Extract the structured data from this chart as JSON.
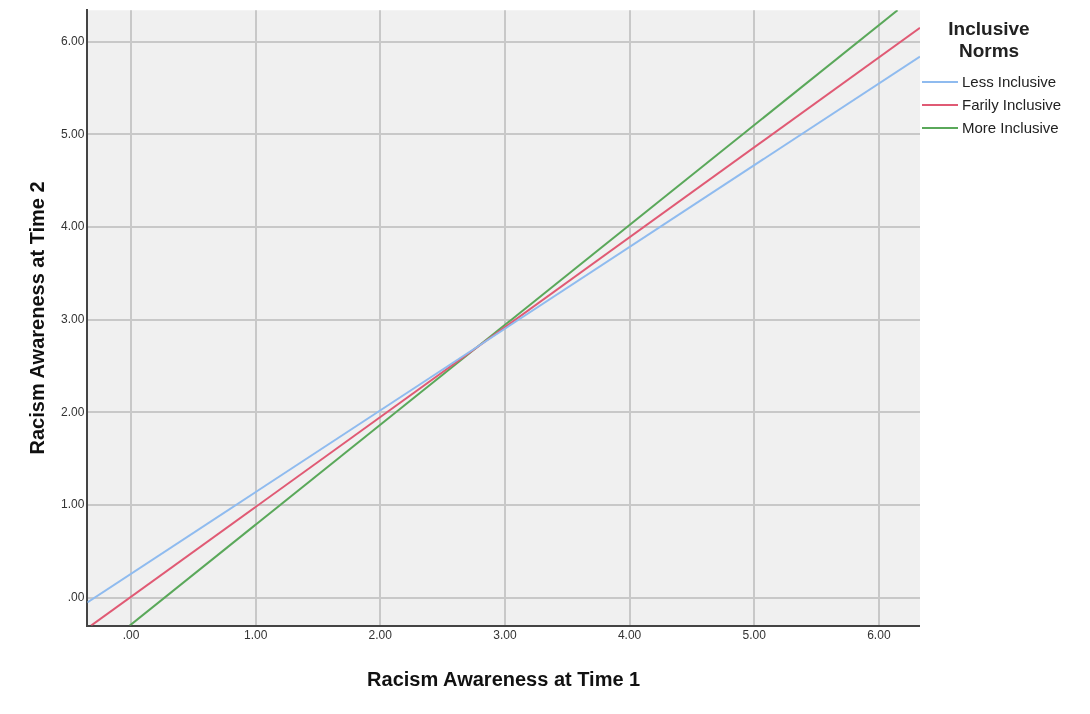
{
  "chart_data": {
    "type": "line",
    "xlabel": "Racism Awareness at Time 1",
    "ylabel": "Racism Awareness at Time 2",
    "legend_title": "Inclusive Norms",
    "legend": "right",
    "grid": true,
    "marker": "none",
    "line_style": "solid",
    "xlim": [
      -0.35,
      6.33
    ],
    "ylim": [
      -0.3,
      6.34
    ],
    "xticks": [
      {
        "value": 0,
        "label": ".00"
      },
      {
        "value": 1,
        "label": "1.00"
      },
      {
        "value": 2,
        "label": "2.00"
      },
      {
        "value": 3,
        "label": "3.00"
      },
      {
        "value": 4,
        "label": "4.00"
      },
      {
        "value": 5,
        "label": "5.00"
      },
      {
        "value": 6,
        "label": "6.00"
      }
    ],
    "yticks": [
      {
        "value": 0,
        "label": ".00"
      },
      {
        "value": 1,
        "label": "1.00"
      },
      {
        "value": 2,
        "label": "2.00"
      },
      {
        "value": 3,
        "label": "3.00"
      },
      {
        "value": 4,
        "label": "4.00"
      },
      {
        "value": 5,
        "label": "5.00"
      },
      {
        "value": 6,
        "label": "6.00"
      }
    ],
    "series": [
      {
        "name": "Less Inclusive",
        "color": "#8fbbef",
        "x": [
          -0.35,
          6.33
        ],
        "values": [
          -0.05,
          5.84
        ]
      },
      {
        "name": "Farily Inclusive",
        "color": "#e05a74",
        "x": [
          -0.32,
          6.33
        ],
        "values": [
          -0.3,
          6.15
        ]
      },
      {
        "name": "More Inclusive",
        "color": "#5aa85a",
        "x": [
          -0.01,
          6.15
        ],
        "values": [
          -0.3,
          6.34
        ]
      }
    ]
  }
}
